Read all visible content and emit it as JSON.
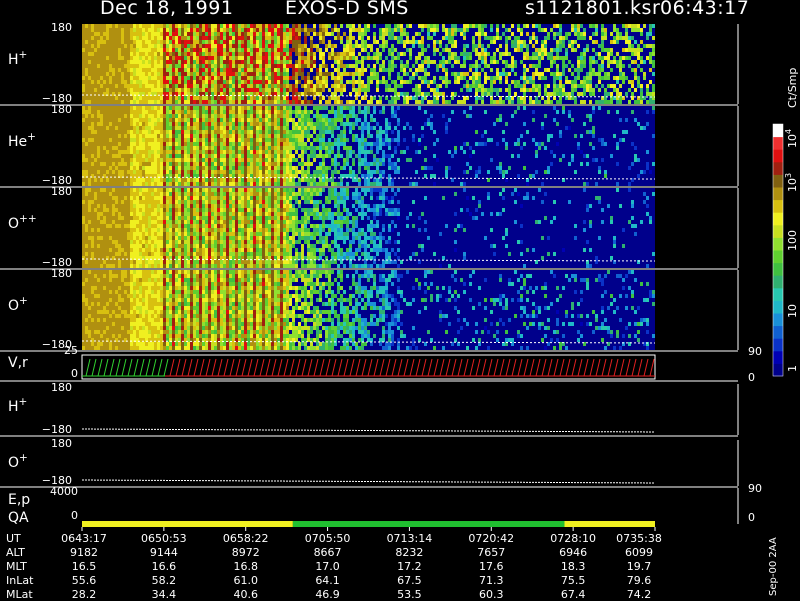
{
  "header": {
    "date": "Dec 18, 1991",
    "mission": "EXOS-D SMS",
    "file": "s1121801.ksr",
    "time": "06:43:17"
  },
  "panels": [
    {
      "label": "H",
      "sup": "+",
      "ymax": "180",
      "ymin": "−180",
      "noise": 0.55,
      "base_after": 0.35
    },
    {
      "label": "He",
      "sup": "+",
      "ymax": "180",
      "ymin": "−180",
      "noise": 0.15,
      "base_after": 0.08
    },
    {
      "label": "O",
      "sup": "++",
      "ymax": "180",
      "ymin": "−180",
      "noise": 0.1,
      "base_after": 0.06
    },
    {
      "label": "O",
      "sup": "+",
      "ymax": "180",
      "ymin": "−180",
      "noise": 0.18,
      "base_after": 0.1
    }
  ],
  "vr_panel": {
    "label": "V,r",
    "ymax": "25",
    "ymin": "0",
    "right_top": "90",
    "right_bottom": "0"
  },
  "h_pitch": {
    "label": "H",
    "sup": "+",
    "ymax": "180",
    "ymin": "−180"
  },
  "o_pitch": {
    "label": "O",
    "sup": "+",
    "ymax": "180",
    "ymin": "−180"
  },
  "ep_panel": {
    "label": "E,p",
    "ymax": "4000",
    "ymin": "0",
    "right_top": "90",
    "right_bottom": "0"
  },
  "qa_panel": {
    "label": "QA"
  },
  "colorbar": {
    "unit": "Ct/Smp",
    "ticks": [
      {
        "text": "1",
        "sup": ""
      },
      {
        "text": "10",
        "sup": ""
      },
      {
        "text": "100",
        "sup": ""
      },
      {
        "text": "10",
        "sup": "3"
      },
      {
        "text": "10",
        "sup": "4"
      }
    ]
  },
  "colors": {
    "scale": [
      "#00008b",
      "#0000b4",
      "#0a32c8",
      "#1060d0",
      "#1a90d8",
      "#20b8c8",
      "#28c8b0",
      "#30b070",
      "#40c040",
      "#60d030",
      "#90e030",
      "#c8e020",
      "#f0f020",
      "#d8c010",
      "#b09010",
      "#806010",
      "#a02010",
      "#e01010",
      "#f03030",
      "#ffffff"
    ],
    "qa_yellow": "#f0f020",
    "qa_green": "#20c030",
    "vr_green": "#30d030",
    "vr_red": "#e02020"
  },
  "qa_segments": [
    {
      "color": "yellow",
      "start": 0.0,
      "end": 0.368
    },
    {
      "color": "green",
      "start": 0.368,
      "end": 0.842
    },
    {
      "color": "yellow",
      "start": 0.842,
      "end": 1.0
    }
  ],
  "table": {
    "rows": [
      {
        "name": "UT",
        "values": [
          "0643:17",
          "0650:53",
          "0658:22",
          "0705:50",
          "0713:14",
          "0720:42",
          "0728:10",
          "0735:38"
        ]
      },
      {
        "name": "ALT",
        "values": [
          "9182",
          "9144",
          "8972",
          "8667",
          "8232",
          "7657",
          "6946",
          "6099"
        ]
      },
      {
        "name": "MLT",
        "values": [
          "16.5",
          "16.6",
          "16.8",
          "17.0",
          "17.2",
          "17.6",
          "18.3",
          "19.7"
        ]
      },
      {
        "name": "InLat",
        "values": [
          "55.6",
          "58.2",
          "61.0",
          "64.1",
          "67.5",
          "71.3",
          "75.5",
          "79.6"
        ]
      },
      {
        "name": "MLat",
        "values": [
          "28.2",
          "34.4",
          "40.6",
          "46.9",
          "53.5",
          "60.3",
          "67.4",
          "74.2"
        ]
      }
    ]
  },
  "footer_note": "Sep-00 2AA",
  "chart_data": {
    "type": "heatmap",
    "title": "Dec 18, 1991   EXOS-D SMS",
    "x_ticks": [
      "0643:17",
      "0650:53",
      "0658:22",
      "0705:50",
      "0713:14",
      "0720:42",
      "0728:10",
      "0735:38"
    ],
    "series": [
      {
        "name": "H+",
        "y_range": [
          -180,
          180
        ]
      },
      {
        "name": "He+",
        "y_range": [
          -180,
          180
        ]
      },
      {
        "name": "O++",
        "y_range": [
          -180,
          180
        ]
      },
      {
        "name": "O+",
        "y_range": [
          -180,
          180
        ]
      }
    ],
    "colorbar": {
      "label": "Ct/Smp",
      "scale": "log",
      "range": [
        1,
        10000
      ]
    }
  }
}
